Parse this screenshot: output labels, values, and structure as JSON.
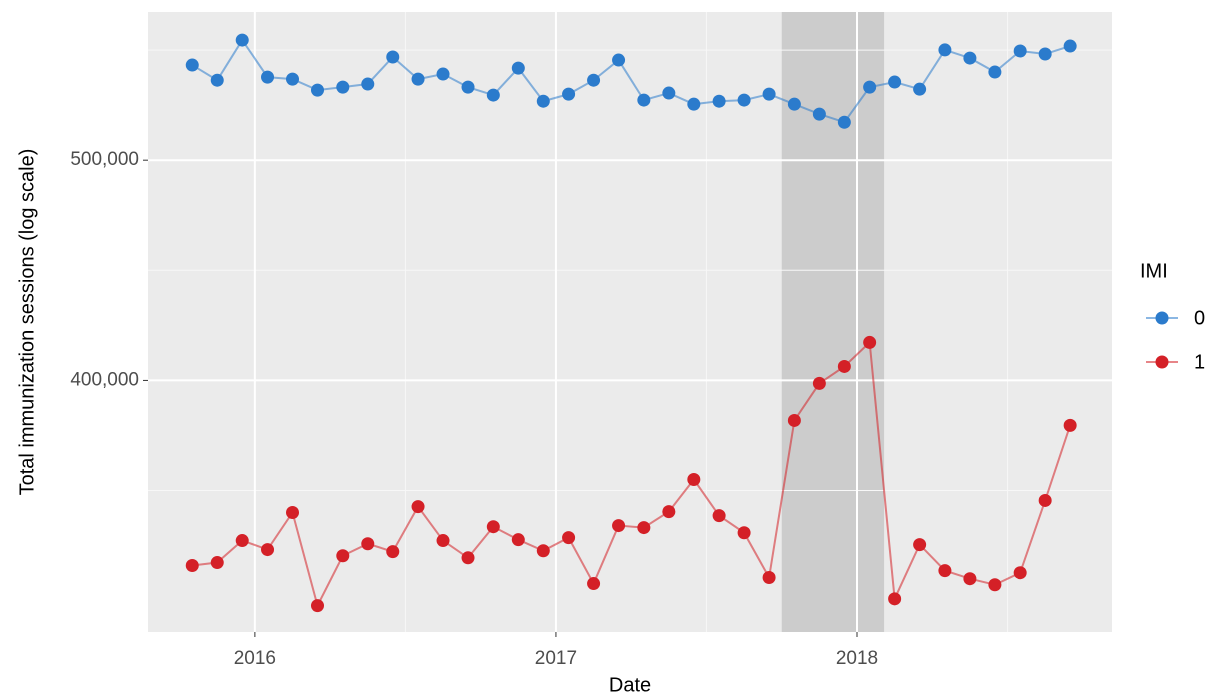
{
  "chart_data": {
    "type": "line",
    "x_label": "Date",
    "y_label": "Total immunization sessions (log scale)",
    "legend_title": "IMI",
    "legend": "right",
    "log_y": true,
    "grid": true,
    "minor_grid": true,
    "highlight_x": [
      2017.75,
      2018.09
    ],
    "highlight_color": "#cccccc",
    "xlim": [
      2015.645,
      2018.847
    ],
    "xticks": [
      2016,
      2017,
      2018
    ],
    "ylim": [
      310000,
      581000
    ],
    "yticks": [
      {
        "value": 400000,
        "label": "400,000"
      },
      {
        "value": 500000,
        "label": "500,000"
      }
    ],
    "x": [
      2015.792,
      2015.875,
      2015.958,
      2016.042,
      2016.125,
      2016.208,
      2016.292,
      2016.375,
      2016.458,
      2016.542,
      2016.625,
      2016.708,
      2016.792,
      2016.875,
      2016.958,
      2017.042,
      2017.125,
      2017.208,
      2017.292,
      2017.375,
      2017.458,
      2017.542,
      2017.625,
      2017.708,
      2017.792,
      2017.875,
      2017.958,
      2018.042,
      2018.125,
      2018.208,
      2018.292,
      2018.375,
      2018.458,
      2018.542,
      2018.625,
      2018.708
    ],
    "series": [
      {
        "name": "0",
        "color": "#2b7bcc",
        "values": [
          550600,
          542200,
          564700,
          543900,
          542800,
          536800,
          538400,
          540100,
          555100,
          542800,
          545600,
          538400,
          534100,
          548900,
          530800,
          534600,
          542200,
          553400,
          531400,
          535200,
          529200,
          530800,
          531400,
          534600,
          529200,
          523900,
          519600,
          538400,
          541200,
          537300,
          559100,
          554500,
          546700,
          558500,
          556800,
          561300
        ]
      },
      {
        "name": "1",
        "color": "#d42027",
        "values": [
          331600,
          332600,
          340100,
          337000,
          349900,
          318400,
          334900,
          339000,
          336300,
          352000,
          340100,
          334200,
          344900,
          340400,
          336600,
          341100,
          325600,
          345300,
          344600,
          350200,
          361800,
          348800,
          342800,
          327600,
          384100,
          398800,
          405700,
          415700,
          320600,
          338700,
          329900,
          327200,
          325200,
          329200,
          354200,
          382200
        ]
      }
    ]
  }
}
